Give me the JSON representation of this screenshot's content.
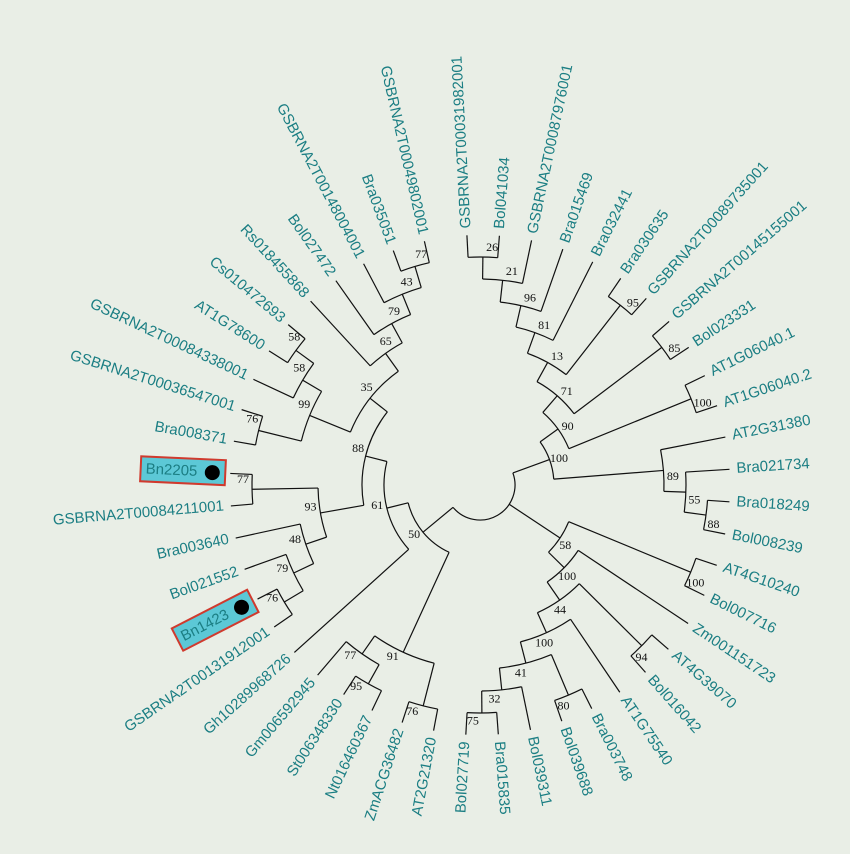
{
  "leaves": [
    "GSBRNA2T00031982001",
    "Bol041034",
    "GSBRNA2T00087976001",
    "Bra015469",
    "Bra032441",
    "Bra030635",
    "GSBRNA2T00089735001",
    "GSBRNA2T00145155001",
    "Bol023331",
    "AT1G06040.1",
    "AT1G06040.2",
    "AT2G31380",
    "Bra021734",
    "Bra018249",
    "Bol008239",
    "AT4G10240",
    "Bol007716",
    "Zm001151723",
    "AT4G39070",
    "Bol016042",
    "AT1G75540",
    "Bra003748",
    "Bol039688",
    "Bol039311",
    "Bra015835",
    "Bol027719",
    "AT2G21320",
    "ZmACG36482",
    "Nt016460367",
    "St006348330",
    "Gm006592945",
    "Gh10289968726",
    "GSBRNA2T00131912001",
    "Bn1423",
    "Bol021552",
    "Bra003640",
    "GSBRNA2T00084211001",
    "Bn2205",
    "Bra008371",
    "GSBRNA2T00036547001",
    "GSBRNA2T00084338001",
    "AT1G78600",
    "Cs010472693",
    "Rs018455868",
    "Bol027472",
    "GSBRNA2T00148004001",
    "Bra035051",
    "GSBRNA2T00049802001"
  ],
  "bootstrap": [
    26,
    21,
    96,
    81,
    95,
    13,
    85,
    71,
    100,
    90,
    100,
    89,
    55,
    88,
    100,
    58,
    100,
    44,
    94,
    100,
    80,
    41,
    32,
    75,
    76,
    95,
    77,
    91,
    50,
    61,
    88,
    35,
    65,
    79,
    43,
    77,
    58,
    58,
    99,
    76,
    77,
    93,
    48,
    79,
    76
  ]
}
